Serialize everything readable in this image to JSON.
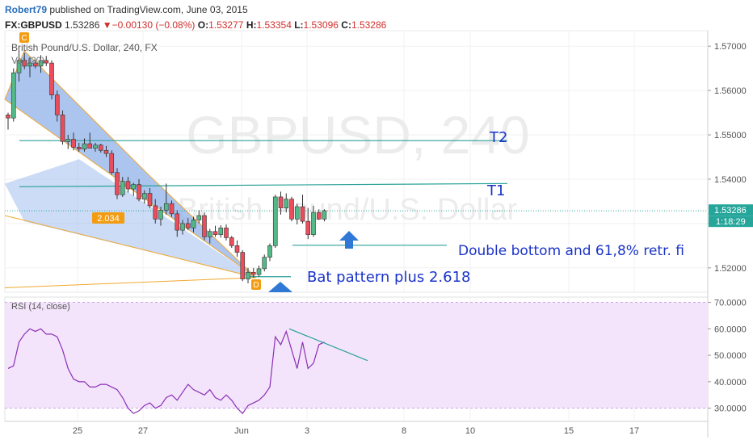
{
  "header": {
    "author": "Robert79",
    "published": " published on TradingView.com, June 03, 2015",
    "symbol": "FX:GBPUSD",
    "last": "1.53286",
    "change": "−0.00130 (−0.08%)",
    "o_label": "O:",
    "o_value": "1.53277",
    "h_label": "H:",
    "h_value": "1.53354",
    "l_label": "L:",
    "l_value": "1.53096",
    "c_label": "C:",
    "c_value": "1.53286"
  },
  "chart_data": [
    {
      "type": "candlestick",
      "title": "British Pound/U.S. Dollar, 240, FX",
      "watermark": "GBPUSD, 240",
      "watermark_sub": "British Pound/U.S. Dollar",
      "volume_label": "Vol (20)",
      "ylim": [
        1.5145,
        1.5735
      ],
      "y_ticks": [
        "1.57000",
        "1.56000",
        "1.55000",
        "1.54000",
        "1.53000",
        "1.52000"
      ],
      "y_tick_values": [
        1.57,
        1.56,
        1.55,
        1.54,
        1.53,
        1.52
      ],
      "x_ticks": [
        "25",
        "27",
        "Jun",
        "3",
        "8",
        "10",
        "15",
        "17"
      ],
      "last_price_label": "1.53286",
      "last_price": 1.53286,
      "countdown_label": "1:18:29",
      "colors": {
        "up": "#53b987",
        "down": "#eb4d5c",
        "pattern_fill": "#8fb1ea",
        "pattern_line": "#f0a830",
        "trend": "#2aa198"
      },
      "candles": [
        [
          1.5545,
          1.555,
          1.5512,
          1.5538
        ],
        [
          1.5538,
          1.565,
          1.553,
          1.564
        ],
        [
          1.564,
          1.569,
          1.562,
          1.5668
        ],
        [
          1.5668,
          1.5685,
          1.5648,
          1.5655
        ],
        [
          1.5655,
          1.5675,
          1.563,
          1.5662
        ],
        [
          1.5662,
          1.567,
          1.565,
          1.5655
        ],
        [
          1.5655,
          1.568,
          1.564,
          1.5668
        ],
        [
          1.5668,
          1.5678,
          1.5655,
          1.5662
        ],
        [
          1.5662,
          1.5668,
          1.558,
          1.559
        ],
        [
          1.559,
          1.56,
          1.553,
          1.5545
        ],
        [
          1.5545,
          1.5555,
          1.5478,
          1.5485
        ],
        [
          1.5485,
          1.55,
          1.5468,
          1.549
        ],
        [
          1.549,
          1.5505,
          1.5465,
          1.5472
        ],
        [
          1.5472,
          1.5482,
          1.5462,
          1.5468
        ],
        [
          1.5468,
          1.5492,
          1.5462,
          1.548
        ],
        [
          1.548,
          1.5505,
          1.547,
          1.547
        ],
        [
          1.547,
          1.5482,
          1.5462,
          1.5477
        ],
        [
          1.5477,
          1.548,
          1.546,
          1.5465
        ],
        [
          1.5465,
          1.5475,
          1.545,
          1.5458
        ],
        [
          1.5458,
          1.5465,
          1.541,
          1.5415
        ],
        [
          1.5415,
          1.5425,
          1.5355,
          1.5365
        ],
        [
          1.5365,
          1.5405,
          1.536,
          1.5395
        ],
        [
          1.5395,
          1.5405,
          1.537,
          1.5378
        ],
        [
          1.5378,
          1.5392,
          1.5362,
          1.5388
        ],
        [
          1.5388,
          1.54,
          1.535,
          1.5355
        ],
        [
          1.5355,
          1.5375,
          1.5345,
          1.5368
        ],
        [
          1.5368,
          1.538,
          1.5335,
          1.534
        ],
        [
          1.534,
          1.5355,
          1.53,
          1.531
        ],
        [
          1.531,
          1.5338,
          1.5295,
          1.533
        ],
        [
          1.533,
          1.539,
          1.532,
          1.5345
        ],
        [
          1.5345,
          1.5352,
          1.5315,
          1.5322
        ],
        [
          1.5322,
          1.533,
          1.527,
          1.5285
        ],
        [
          1.5285,
          1.5308,
          1.5275,
          1.53
        ],
        [
          1.53,
          1.5312,
          1.5285,
          1.529
        ],
        [
          1.529,
          1.5315,
          1.528,
          1.5308
        ],
        [
          1.5308,
          1.533,
          1.53,
          1.5318
        ],
        [
          1.5318,
          1.5325,
          1.5262,
          1.527
        ],
        [
          1.527,
          1.5288,
          1.5255,
          1.5282
        ],
        [
          1.5282,
          1.5295,
          1.527,
          1.5275
        ],
        [
          1.5275,
          1.5296,
          1.5268,
          1.529
        ],
        [
          1.529,
          1.5298,
          1.5262,
          1.5268
        ],
        [
          1.5268,
          1.5272,
          1.5245,
          1.525
        ],
        [
          1.525,
          1.5262,
          1.5225,
          1.5235
        ],
        [
          1.5235,
          1.524,
          1.517,
          1.5175
        ],
        [
          1.5175,
          1.52,
          1.5165,
          1.519
        ],
        [
          1.519,
          1.52,
          1.5178,
          1.5185
        ],
        [
          1.5185,
          1.5205,
          1.518,
          1.5198
        ],
        [
          1.5198,
          1.523,
          1.5192,
          1.5224
        ],
        [
          1.5224,
          1.5255,
          1.5215,
          1.525
        ],
        [
          1.525,
          1.5365,
          1.5245,
          1.536
        ],
        [
          1.536,
          1.5372,
          1.532,
          1.5335
        ],
        [
          1.5335,
          1.5368,
          1.5325,
          1.5355
        ],
        [
          1.5355,
          1.536,
          1.5305,
          1.531
        ],
        [
          1.531,
          1.5345,
          1.5298,
          1.5338
        ],
        [
          1.5338,
          1.5365,
          1.53,
          1.5305
        ],
        [
          1.5305,
          1.5335,
          1.5265,
          1.5275
        ],
        [
          1.5275,
          1.534,
          1.527,
          1.5325
        ],
        [
          1.5325,
          1.5332,
          1.5308,
          1.531
        ],
        [
          1.531,
          1.5332,
          1.5305,
          1.5329
        ]
      ],
      "annotations": {
        "T2": "T2",
        "T1": "T1",
        "double_bottom": "Double bottom and 61,8% retr. fi",
        "bat_pattern": "Bat  pattern plus 2.618",
        "ratio": "2.034",
        "point_c": "C",
        "point_d": "D",
        "t2_price": 1.5487,
        "t1_price": 1.5383,
        "support_price": 1.5251
      }
    },
    {
      "type": "line",
      "title": "RSI (14, close)",
      "ylim": [
        25,
        72
      ],
      "y_ticks": [
        "70.0000",
        "60.0000",
        "50.0000",
        "40.0000",
        "30.0000"
      ],
      "y_tick_values": [
        70,
        60,
        50,
        40,
        30
      ],
      "band": [
        30,
        70
      ],
      "colors": {
        "line": "#8b2fb6",
        "band": "#f3e4fb",
        "trend": "#2aa198"
      },
      "values": [
        45,
        46,
        55,
        58,
        60,
        59,
        60,
        58,
        58,
        57,
        52,
        45,
        41,
        40,
        40,
        38,
        38,
        39,
        39,
        38,
        37,
        34,
        30,
        28,
        29,
        31,
        32,
        30,
        31,
        34,
        35,
        33,
        36,
        39,
        37,
        36,
        35,
        37,
        34,
        33,
        35,
        33,
        30,
        28,
        31,
        32,
        33,
        35,
        38,
        57,
        54,
        59,
        52,
        45,
        55,
        45,
        47,
        54,
        55
      ]
    }
  ]
}
